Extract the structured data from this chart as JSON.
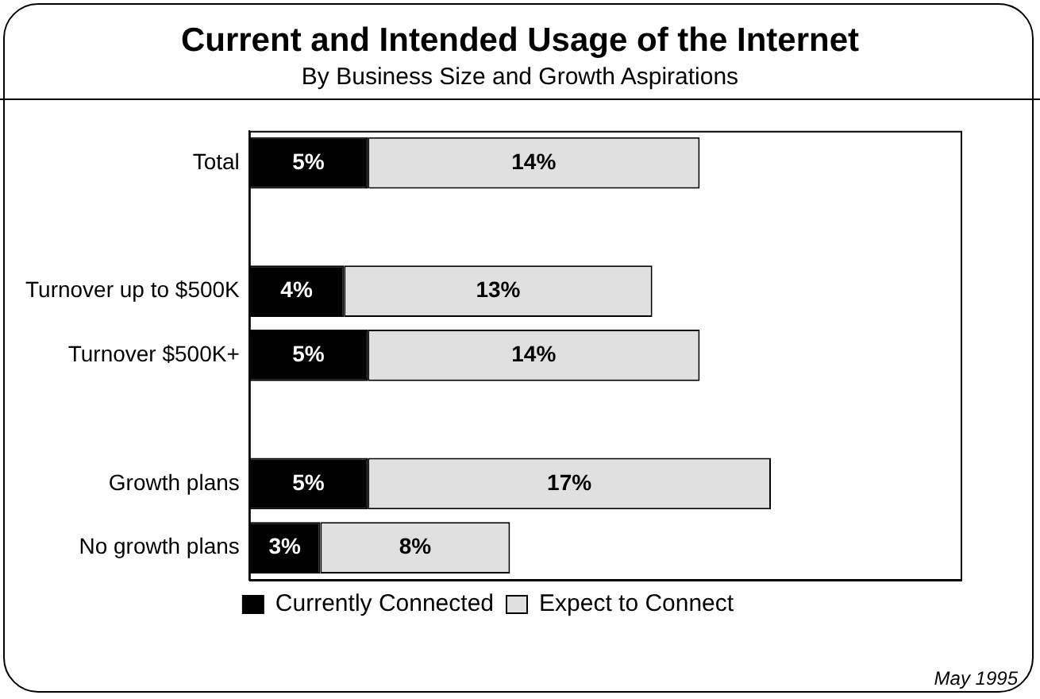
{
  "chart_data": {
    "type": "bar",
    "orientation": "horizontal",
    "stacked": true,
    "title": "Current and Intended Usage of the Internet",
    "subtitle": "By Business Size and Growth Aspirations",
    "categories": [
      "Total",
      null,
      "Turnover up to $500K",
      "Turnover $500K+",
      null,
      "Growth plans",
      "No growth plans"
    ],
    "series": [
      {
        "name": "Currently Connected",
        "color": "#000000",
        "values": [
          5,
          null,
          4,
          5,
          null,
          5,
          3
        ],
        "value_labels": [
          "5%",
          null,
          "4%",
          "5%",
          null,
          "5%",
          "3%"
        ]
      },
      {
        "name": "Expect to Connect",
        "color": "#e0e0e0",
        "values": [
          14,
          null,
          13,
          14,
          null,
          17,
          8
        ],
        "value_labels": [
          "14%",
          null,
          "13%",
          "14%",
          null,
          "17%",
          "8%"
        ]
      }
    ],
    "tick_labels": "y",
    "grid": false,
    "legend": "bottom",
    "annotations": [
      "May 1995"
    ]
  }
}
